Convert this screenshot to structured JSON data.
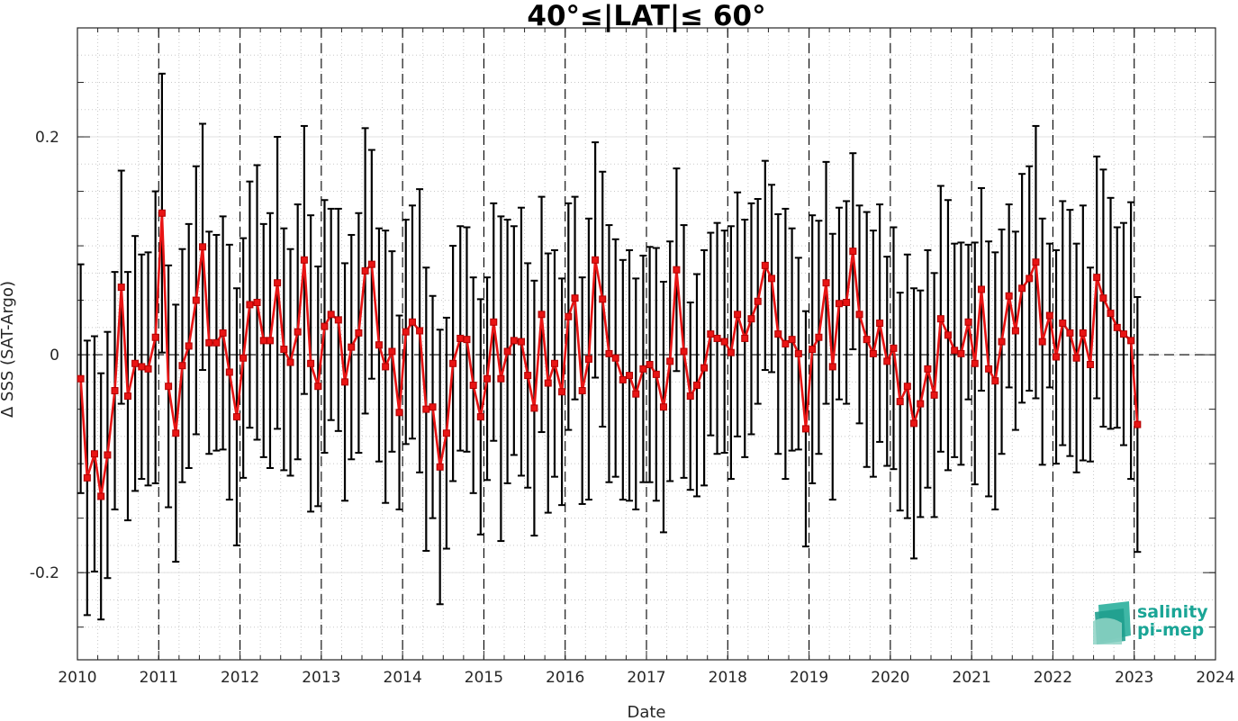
{
  "chart_data": {
    "type": "line",
    "title": "40°≤|LAT|≤ 60°",
    "xlabel": "Date",
    "ylabel": "Δ SSS (SAT-Argo)",
    "xlim": [
      2010,
      2024
    ],
    "ylim": [
      -0.28,
      0.3
    ],
    "xticks": [
      2010,
      2011,
      2012,
      2013,
      2014,
      2015,
      2016,
      2017,
      2018,
      2019,
      2020,
      2021,
      2022,
      2023,
      2024
    ],
    "xtick_labels": [
      "2010",
      "2011",
      "2012",
      "2013",
      "2014",
      "2015",
      "2016",
      "2017",
      "2018",
      "2019",
      "2020",
      "2021",
      "2022",
      "2023",
      "2024"
    ],
    "yticks": [
      -0.2,
      0,
      0.2
    ],
    "ytick_labels": [
      "-0.2",
      "0",
      "0.2"
    ],
    "grid": true,
    "year_separators": "dashed vertical lines at each year",
    "zero_line": "dashed horizontal line at 0",
    "series": [
      {
        "color": "#e81414",
        "marker": "square",
        "error_bar_color": "#000000",
        "x": [
          2010.04,
          2010.12,
          2010.21,
          2010.29,
          2010.37,
          2010.46,
          2010.54,
          2010.62,
          2010.71,
          2010.79,
          2010.87,
          2010.96,
          2011.04,
          2011.12,
          2011.21,
          2011.29,
          2011.37,
          2011.46,
          2011.54,
          2011.62,
          2011.71,
          2011.79,
          2011.87,
          2011.96,
          2012.04,
          2012.12,
          2012.21,
          2012.29,
          2012.37,
          2012.46,
          2012.54,
          2012.62,
          2012.71,
          2012.79,
          2012.87,
          2012.96,
          2013.04,
          2013.12,
          2013.21,
          2013.29,
          2013.37,
          2013.46,
          2013.54,
          2013.62,
          2013.71,
          2013.79,
          2013.87,
          2013.96,
          2014.04,
          2014.12,
          2014.21,
          2014.29,
          2014.37,
          2014.46,
          2014.54,
          2014.62,
          2014.71,
          2014.79,
          2014.87,
          2014.96,
          2015.04,
          2015.12,
          2015.21,
          2015.29,
          2015.37,
          2015.46,
          2015.54,
          2015.62,
          2015.71,
          2015.79,
          2015.87,
          2015.96,
          2016.04,
          2016.12,
          2016.21,
          2016.29,
          2016.37,
          2016.46,
          2016.54,
          2016.62,
          2016.71,
          2016.79,
          2016.87,
          2016.96,
          2017.04,
          2017.12,
          2017.21,
          2017.29,
          2017.37,
          2017.46,
          2017.54,
          2017.62,
          2017.71,
          2017.79,
          2017.87,
          2017.96,
          2018.04,
          2018.12,
          2018.21,
          2018.29,
          2018.37,
          2018.46,
          2018.54,
          2018.62,
          2018.71,
          2018.79,
          2018.87,
          2018.96,
          2019.04,
          2019.12,
          2019.21,
          2019.29,
          2019.37,
          2019.46,
          2019.54,
          2019.62,
          2019.71,
          2019.79,
          2019.87,
          2019.96,
          2020.04,
          2020.12,
          2020.21,
          2020.29,
          2020.37,
          2020.46,
          2020.54,
          2020.62,
          2020.71,
          2020.79,
          2020.87,
          2020.96,
          2021.04,
          2021.12,
          2021.21,
          2021.29,
          2021.37,
          2021.46,
          2021.54,
          2021.62,
          2021.71,
          2021.79,
          2021.87,
          2021.96,
          2022.04,
          2022.12,
          2022.21,
          2022.29,
          2022.37,
          2022.46,
          2022.54,
          2022.62,
          2022.71,
          2022.79,
          2022.87,
          2022.96,
          2023.04
        ],
        "y": [
          -0.022,
          -0.113,
          -0.091,
          -0.13,
          -0.092,
          -0.033,
          0.062,
          -0.038,
          -0.008,
          -0.011,
          -0.013,
          0.016,
          0.13,
          -0.029,
          -0.072,
          -0.01,
          0.008,
          0.05,
          0.099,
          0.011,
          0.011,
          0.02,
          -0.016,
          -0.057,
          -0.003,
          0.046,
          0.048,
          0.013,
          0.013,
          0.066,
          0.005,
          -0.007,
          0.021,
          0.087,
          -0.008,
          -0.029,
          0.026,
          0.037,
          0.032,
          -0.025,
          0.007,
          0.02,
          0.077,
          0.083,
          0.009,
          -0.011,
          0.003,
          -0.053,
          0.021,
          0.03,
          0.022,
          -0.05,
          -0.048,
          -0.103,
          -0.072,
          -0.008,
          0.015,
          0.014,
          -0.028,
          -0.057,
          -0.022,
          0.03,
          -0.022,
          0.003,
          0.013,
          0.012,
          -0.019,
          -0.049,
          0.037,
          -0.026,
          -0.008,
          -0.034,
          0.035,
          0.052,
          -0.033,
          -0.004,
          0.087,
          0.051,
          0.001,
          -0.003,
          -0.023,
          -0.019,
          -0.036,
          -0.013,
          -0.009,
          -0.018,
          -0.048,
          -0.006,
          0.078,
          0.003,
          -0.038,
          -0.028,
          -0.012,
          0.019,
          0.015,
          0.012,
          0.002,
          0.037,
          0.015,
          0.033,
          0.049,
          0.082,
          0.07,
          0.019,
          0.01,
          0.014,
          0.001,
          -0.068,
          0.005,
          0.016,
          0.066,
          -0.011,
          0.047,
          0.048,
          0.095,
          0.037,
          0.014,
          0.001,
          0.029,
          -0.006,
          0.006,
          -0.043,
          -0.029,
          -0.063,
          -0.045,
          -0.013,
          -0.037,
          0.033,
          0.018,
          0.004,
          0.001,
          0.03,
          -0.008,
          0.06,
          -0.013,
          -0.024,
          0.012,
          0.054,
          0.022,
          0.061,
          0.07,
          0.085,
          0.012,
          0.036,
          -0.002,
          0.029,
          0.02,
          -0.003,
          0.02,
          -0.009,
          0.071,
          0.052,
          0.038,
          0.025,
          0.019,
          0.013,
          -0.064
        ],
        "error": [
          0.105,
          0.126,
          0.108,
          0.113,
          0.113,
          0.109,
          0.107,
          0.114,
          0.117,
          0.103,
          0.107,
          0.134,
          0.128,
          0.111,
          0.118,
          0.107,
          0.112,
          0.123,
          0.113,
          0.102,
          0.099,
          0.107,
          0.117,
          0.118,
          0.11,
          0.113,
          0.126,
          0.107,
          0.117,
          0.134,
          0.111,
          0.104,
          0.117,
          0.123,
          0.136,
          0.11,
          0.116,
          0.097,
          0.102,
          0.109,
          0.103,
          0.11,
          0.131,
          0.105,
          0.107,
          0.125,
          0.092,
          0.089,
          0.103,
          0.107,
          0.13,
          0.13,
          0.102,
          0.126,
          0.106,
          0.108,
          0.103,
          0.103,
          0.099,
          0.108,
          0.093,
          0.109,
          0.149,
          0.121,
          0.105,
          0.123,
          0.103,
          0.117,
          0.108,
          0.119,
          0.104,
          0.104,
          0.104,
          0.093,
          0.104,
          0.129,
          0.108,
          0.117,
          0.118,
          0.109,
          0.11,
          0.115,
          0.106,
          0.104,
          0.108,
          0.116,
          0.115,
          0.11,
          0.093,
          0.116,
          0.086,
          0.102,
          0.108,
          0.093,
          0.106,
          0.102,
          0.116,
          0.112,
          0.109,
          0.106,
          0.094,
          0.096,
          0.086,
          0.11,
          0.124,
          0.102,
          0.088,
          0.108,
          0.123,
          0.107,
          0.111,
          0.122,
          0.088,
          0.093,
          0.09,
          0.1,
          0.117,
          0.113,
          0.109,
          0.096,
          0.111,
          0.1,
          0.121,
          0.124,
          0.104,
          0.109,
          0.112,
          0.122,
          0.124,
          0.098,
          0.102,
          0.071,
          0.111,
          0.093,
          0.117,
          0.118,
          0.103,
          0.084,
          0.091,
          0.105,
          0.103,
          0.125,
          0.113,
          0.066,
          0.098,
          0.112,
          0.113,
          0.105,
          0.117,
          0.089,
          0.111,
          0.118,
          0.106,
          0.092,
          0.102,
          0.127,
          0.117
        ]
      }
    ],
    "logo": "salinity pi-mep",
    "logo_lines": [
      "salinity",
      "pi-mep"
    ]
  }
}
